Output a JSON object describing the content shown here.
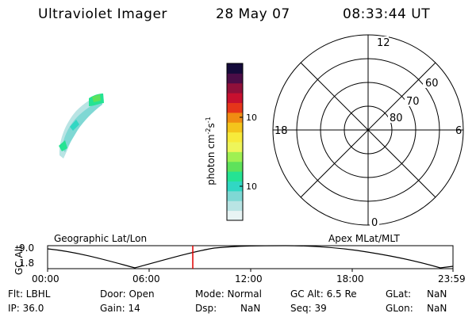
{
  "header": {
    "instrument": "Ultraviolet Imager",
    "date": "28 May 07",
    "time": "08:33:44 UT"
  },
  "colorbar": {
    "label": "photon cm-2s-1",
    "ticks": [
      "100",
      "10"
    ],
    "colors": [
      "#e8f4f4",
      "#b9e4e4",
      "#7fd8d4",
      "#31d7c3",
      "#25e393",
      "#5ee25b",
      "#9ff052",
      "#eef55a",
      "#f7ea3b",
      "#f4c51c",
      "#f08c12",
      "#e5351a",
      "#c7102f",
      "#90103a",
      "#4b0d47",
      "#140a3a"
    ]
  },
  "polar_plot": {
    "mlt_labels": {
      "top": "12",
      "left": "18",
      "right": "6",
      "bottom": "0"
    },
    "lat_labels": [
      "60",
      "70",
      "80"
    ]
  },
  "alt_plot": {
    "left_title": "Geographic Lat/Lon",
    "right_title": "Apex MLat/MLT",
    "ylabel": "GC Alt",
    "y_ticks": [
      "9.0",
      "1.8"
    ],
    "x_ticks": [
      "00:00",
      "06:00",
      "12:00",
      "18:00",
      "23:59"
    ],
    "curve_color": "#000000",
    "marker_color": "#e00000"
  },
  "status": {
    "flt": "Flt: LBHL",
    "ip": "IP: 36.0",
    "door": "Door: Open",
    "gain": "Gain: 14",
    "mode": "Mode: Normal",
    "dsp_label": "Dsp:",
    "dsp_value": "NaN",
    "gc_alt": "GC Alt: 6.5 Re",
    "seq": "Seq: 39",
    "glat_label": "GLat:",
    "glat_value": "NaN",
    "glon_label": "GLon:",
    "glon_value": "NaN"
  }
}
